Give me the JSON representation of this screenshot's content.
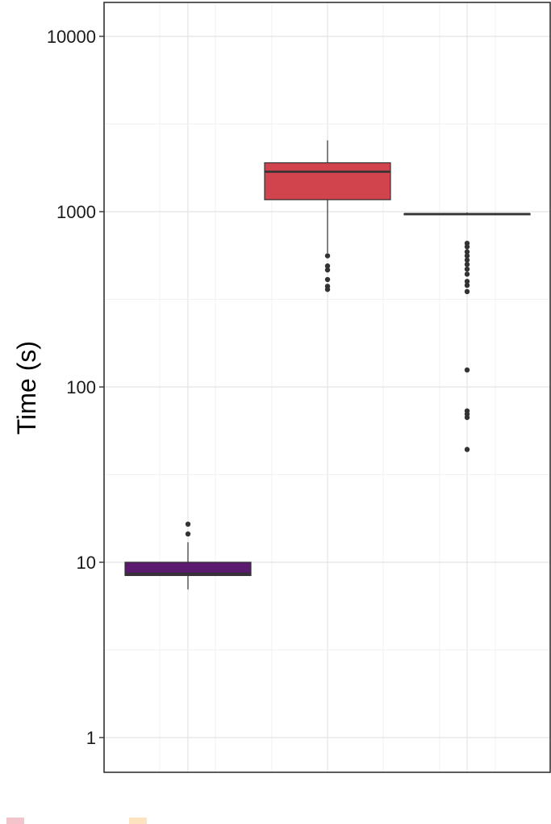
{
  "chart_data": {
    "type": "box",
    "ylabel": "Time (s)",
    "y_scale": "log10",
    "ylim": [
      0.6,
      16000
    ],
    "y_ticks": [
      1,
      10,
      100,
      1000,
      10000
    ],
    "y_tick_labels": [
      "1",
      "10",
      "100",
      "1000",
      "10000"
    ],
    "grid": true,
    "series": [
      {
        "color": "#5a1a6e",
        "whisker_low": 7.0,
        "q1": 8.4,
        "median": 8.6,
        "q3": 10.0,
        "whisker_high": 13.0,
        "outliers": [
          14.5,
          16.5
        ]
      },
      {
        "color": "#d1444e",
        "whisker_low": 580,
        "q1": 1170,
        "median": 1690,
        "q3": 1900,
        "whisker_high": 2550,
        "outliers": [
          560,
          490,
          465,
          410,
          375,
          360
        ]
      },
      {
        "color": "#2a2a2a",
        "whisker_low": 970,
        "q1": 970,
        "median": 970,
        "q3": 975,
        "whisker_high": 990,
        "outliers": [
          660,
          630,
          590,
          560,
          530,
          500,
          470,
          440,
          400,
          380,
          350,
          125,
          73,
          70,
          67,
          44
        ]
      }
    ],
    "legend": {
      "position": "bottom",
      "entries": [
        {
          "label": "",
          "color": "#f3c4cb"
        },
        {
          "label": "",
          "color": "#fde3c0"
        }
      ]
    }
  }
}
